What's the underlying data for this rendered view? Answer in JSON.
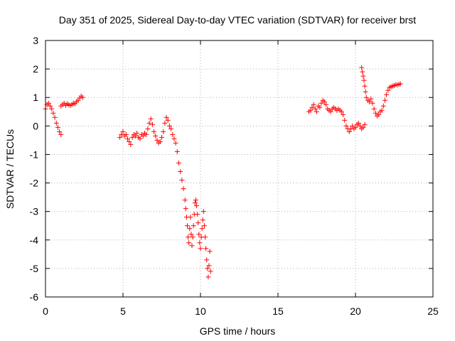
{
  "chart_data": {
    "type": "scatter",
    "title": "Day 351 of 2025, Sidereal Day-to-day VTEC variation (SDTVAR) for receiver brst",
    "xlabel": "GPS time / hours",
    "ylabel": "SDTVAR / TECUs",
    "xlim": [
      0,
      25
    ],
    "ylim": [
      -6,
      3
    ],
    "xticks": [
      0,
      5,
      10,
      15,
      20,
      25
    ],
    "yticks": [
      -6,
      -5,
      -4,
      -3,
      -2,
      -1,
      0,
      1,
      2,
      3
    ],
    "grid": true,
    "marker": "+",
    "color": "#ff0000",
    "series": [
      {
        "name": "SDTVAR",
        "x": [
          0.0,
          0.1,
          0.2,
          0.3,
          0.4,
          0.5,
          0.6,
          0.7,
          0.8,
          0.9,
          1.0,
          1.0,
          1.1,
          1.2,
          1.3,
          1.4,
          1.5,
          1.6,
          1.7,
          1.8,
          1.9,
          2.0,
          2.1,
          2.2,
          2.3,
          2.4,
          4.8,
          4.9,
          5.0,
          5.1,
          5.2,
          5.3,
          5.4,
          5.5,
          5.6,
          5.7,
          5.8,
          5.9,
          6.0,
          6.1,
          6.2,
          6.3,
          6.4,
          6.5,
          6.6,
          6.7,
          6.8,
          6.9,
          7.0,
          7.1,
          7.2,
          7.3,
          7.4,
          7.5,
          7.6,
          7.7,
          7.8,
          7.9,
          8.0,
          8.1,
          8.2,
          8.3,
          8.4,
          8.5,
          8.6,
          8.7,
          8.8,
          8.9,
          9.0,
          9.05,
          9.1,
          9.15,
          9.2,
          9.25,
          9.3,
          9.35,
          9.4,
          9.45,
          9.5,
          9.55,
          9.6,
          9.65,
          9.7,
          9.75,
          9.8,
          9.85,
          9.9,
          9.95,
          10.0,
          10.05,
          10.1,
          10.15,
          10.2,
          10.25,
          10.3,
          10.35,
          10.4,
          10.45,
          10.5,
          10.55,
          10.6,
          10.65,
          17.0,
          17.1,
          17.2,
          17.3,
          17.4,
          17.5,
          17.6,
          17.7,
          17.8,
          17.9,
          18.0,
          18.1,
          18.2,
          18.3,
          18.4,
          18.5,
          18.6,
          18.7,
          18.8,
          18.9,
          19.0,
          19.1,
          19.2,
          19.3,
          19.4,
          19.5,
          19.6,
          19.7,
          19.8,
          19.9,
          20.0,
          20.1,
          20.2,
          20.3,
          20.4,
          20.5,
          20.6,
          20.4,
          20.45,
          20.5,
          20.55,
          20.6,
          20.65,
          20.7,
          20.8,
          20.9,
          21.0,
          21.1,
          21.2,
          21.3,
          21.4,
          21.5,
          21.6,
          21.7,
          21.8,
          21.9,
          22.0,
          22.1,
          22.2,
          22.3,
          22.4,
          22.5,
          22.6,
          22.7,
          22.8,
          22.9
        ],
        "y": [
          0.6,
          0.75,
          0.8,
          0.7,
          0.6,
          0.45,
          0.3,
          0.1,
          -0.05,
          -0.2,
          -0.3,
          0.7,
          0.75,
          0.8,
          0.72,
          0.78,
          0.75,
          0.72,
          0.75,
          0.8,
          0.78,
          0.85,
          0.9,
          0.98,
          1.05,
          1.0,
          -0.4,
          -0.3,
          -0.2,
          -0.35,
          -0.3,
          -0.45,
          -0.55,
          -0.65,
          -0.4,
          -0.3,
          -0.35,
          -0.25,
          -0.4,
          -0.45,
          -0.3,
          -0.35,
          -0.25,
          -0.3,
          -0.1,
          0.1,
          0.25,
          0.05,
          -0.2,
          -0.35,
          -0.5,
          -0.6,
          -0.55,
          -0.4,
          -0.2,
          0.1,
          0.3,
          0.2,
          0.0,
          -0.1,
          -0.3,
          -0.45,
          -0.6,
          -0.9,
          -1.3,
          -1.6,
          -1.9,
          -2.2,
          -2.6,
          -2.9,
          -3.2,
          -3.5,
          -3.9,
          -4.1,
          -3.6,
          -3.2,
          -3.8,
          -4.2,
          -3.9,
          -3.5,
          -3.1,
          -2.7,
          -2.6,
          -2.8,
          -3.1,
          -3.4,
          -3.8,
          -4.1,
          -4.3,
          -3.9,
          -3.6,
          -3.3,
          -3.0,
          -3.5,
          -3.9,
          -4.3,
          -4.7,
          -5.0,
          -5.3,
          -4.9,
          -4.4,
          -5.1,
          0.5,
          0.55,
          0.65,
          0.75,
          0.6,
          0.5,
          0.7,
          0.65,
          0.8,
          0.9,
          0.85,
          0.75,
          0.6,
          0.55,
          0.5,
          0.6,
          0.65,
          0.6,
          0.55,
          0.6,
          0.55,
          0.5,
          0.4,
          0.2,
          0.0,
          -0.1,
          -0.2,
          -0.1,
          0.0,
          -0.1,
          -0.05,
          0.05,
          0.1,
          0.0,
          -0.1,
          -0.05,
          0.05,
          2.05,
          1.9,
          1.75,
          1.6,
          1.4,
          1.2,
          1.0,
          0.9,
          0.85,
          0.95,
          0.8,
          0.6,
          0.45,
          0.35,
          0.4,
          0.5,
          0.55,
          0.7,
          0.9,
          1.1,
          1.25,
          1.35,
          1.38,
          1.4,
          1.42,
          1.45,
          1.44,
          1.46,
          1.48
        ]
      }
    ]
  }
}
